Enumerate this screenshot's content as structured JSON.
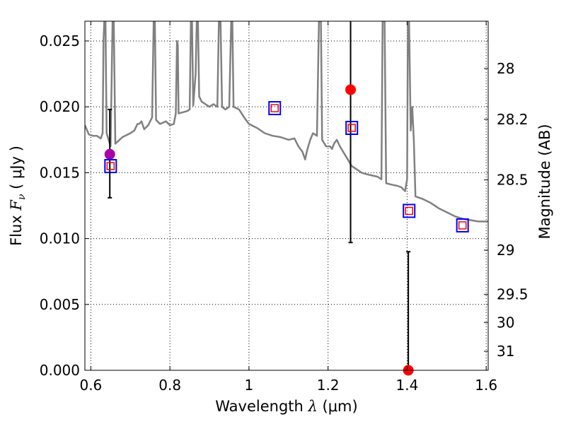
{
  "chart_data": {
    "type": "scatter",
    "xlabel": {
      "prefix": "Wavelength  ",
      "symbol": "λ",
      "unit": " (μm)"
    },
    "ylabel": {
      "prefix": "Flux  ",
      "symbol": "F",
      "subscript": "ν",
      "unit": "  ( μJy )"
    },
    "y2label": "Magnitude (AB)",
    "xlim": [
      0.585,
      1.605
    ],
    "ylim": [
      0.0,
      0.0265
    ],
    "grid": true,
    "x_ticks": [
      0.6,
      0.8,
      1.0,
      1.2,
      1.4,
      1.6
    ],
    "x_tick_labels": [
      "0.6",
      "0.8",
      "1",
      "1.2",
      "1.4",
      "1.6"
    ],
    "y_ticks": [
      0.0,
      0.005,
      0.01,
      0.015,
      0.02,
      0.025
    ],
    "y_tick_labels": [
      "0.000",
      "0.005",
      "0.010",
      "0.015",
      "0.020",
      "0.025"
    ],
    "y2_ticks": [
      28,
      28.2,
      28.5,
      29,
      29.5,
      30,
      31
    ],
    "y2_tick_labels": [
      "28",
      "28.2",
      "28.5",
      "29",
      "29.5",
      "30",
      "31"
    ],
    "colors": {
      "model": "#808080",
      "observed_point_purple": "#aa00aa",
      "observed_point_red": "#ff0000",
      "model_box_outer": "#0000ff",
      "model_box_inner": "#ff0000",
      "error_bar": "#000000",
      "grid": "#000000"
    },
    "series": [
      {
        "kind": "model_spectrum",
        "color": "#808080",
        "points": [
          [
            0.585,
            0.0186
          ],
          [
            0.595,
            0.0179
          ],
          [
            0.605,
            0.0178
          ],
          [
            0.615,
            0.0178
          ],
          [
            0.625,
            0.0176
          ],
          [
            0.63,
            0.018
          ],
          [
            0.632,
            0.025
          ],
          [
            0.634,
            0.0265
          ],
          [
            0.637,
            0.0265
          ],
          [
            0.64,
            0.018
          ],
          [
            0.65,
            0.017
          ],
          [
            0.655,
            0.0265
          ],
          [
            0.658,
            0.0265
          ],
          [
            0.662,
            0.0172
          ],
          [
            0.68,
            0.0177
          ],
          [
            0.7,
            0.018
          ],
          [
            0.71,
            0.0182
          ],
          [
            0.718,
            0.0187
          ],
          [
            0.722,
            0.0187
          ],
          [
            0.728,
            0.0189
          ],
          [
            0.735,
            0.0183
          ],
          [
            0.745,
            0.0186
          ],
          [
            0.755,
            0.0192
          ],
          [
            0.759,
            0.0265
          ],
          [
            0.762,
            0.0265
          ],
          [
            0.765,
            0.019
          ],
          [
            0.775,
            0.0187
          ],
          [
            0.79,
            0.0189
          ],
          [
            0.8,
            0.0186
          ],
          [
            0.81,
            0.0187
          ],
          [
            0.815,
            0.0195
          ],
          [
            0.818,
            0.025
          ],
          [
            0.82,
            0.0247
          ],
          [
            0.822,
            0.0195
          ],
          [
            0.835,
            0.0196
          ],
          [
            0.845,
            0.0197
          ],
          [
            0.85,
            0.0198
          ],
          [
            0.853,
            0.0265
          ],
          [
            0.856,
            0.0265
          ],
          [
            0.859,
            0.0201
          ],
          [
            0.865,
            0.0225
          ],
          [
            0.868,
            0.0265
          ],
          [
            0.871,
            0.0265
          ],
          [
            0.874,
            0.0208
          ],
          [
            0.88,
            0.0204
          ],
          [
            0.89,
            0.0202
          ],
          [
            0.9,
            0.02
          ],
          [
            0.91,
            0.0202
          ],
          [
            0.92,
            0.02
          ],
          [
            0.924,
            0.0265
          ],
          [
            0.928,
            0.0265
          ],
          [
            0.932,
            0.02
          ],
          [
            0.94,
            0.0198
          ],
          [
            0.95,
            0.02
          ],
          [
            0.955,
            0.0265
          ],
          [
            0.958,
            0.0265
          ],
          [
            0.961,
            0.02
          ],
          [
            0.975,
            0.0198
          ],
          [
            0.99,
            0.0191
          ],
          [
            1.0,
            0.0187
          ],
          [
            1.02,
            0.0184
          ],
          [
            1.04,
            0.018
          ],
          [
            1.06,
            0.0178
          ],
          [
            1.08,
            0.0177
          ],
          [
            1.1,
            0.0175
          ],
          [
            1.115,
            0.0176
          ],
          [
            1.125,
            0.017
          ],
          [
            1.135,
            0.0166
          ],
          [
            1.142,
            0.016
          ],
          [
            1.147,
            0.0167
          ],
          [
            1.155,
            0.0175
          ],
          [
            1.162,
            0.018
          ],
          [
            1.172,
            0.0178
          ],
          [
            1.177,
            0.0265
          ],
          [
            1.182,
            0.0265
          ],
          [
            1.185,
            0.0175
          ],
          [
            1.195,
            0.017
          ],
          [
            1.205,
            0.017
          ],
          [
            1.21,
            0.0168
          ],
          [
            1.215,
            0.0172
          ],
          [
            1.222,
            0.0175
          ],
          [
            1.23,
            0.017
          ],
          [
            1.24,
            0.0165
          ],
          [
            1.25,
            0.016
          ],
          [
            1.26,
            0.0155
          ],
          [
            1.275,
            0.0152
          ],
          [
            1.285,
            0.015
          ],
          [
            1.295,
            0.0149
          ],
          [
            1.31,
            0.0148
          ],
          [
            1.325,
            0.0147
          ],
          [
            1.335,
            0.0145
          ],
          [
            1.338,
            0.0265
          ],
          [
            1.343,
            0.0265
          ],
          [
            1.347,
            0.0142
          ],
          [
            1.36,
            0.0141
          ],
          [
            1.375,
            0.014
          ],
          [
            1.385,
            0.0139
          ],
          [
            1.395,
            0.0136
          ],
          [
            1.4,
            0.0145
          ],
          [
            1.402,
            0.0265
          ],
          [
            1.405,
            0.0265
          ],
          [
            1.409,
            0.0182
          ],
          [
            1.413,
            0.02
          ],
          [
            1.417,
            0.0175
          ],
          [
            1.421,
            0.0132
          ],
          [
            1.44,
            0.013
          ],
          [
            1.46,
            0.0127
          ],
          [
            1.48,
            0.0123
          ],
          [
            1.5,
            0.012
          ],
          [
            1.52,
            0.0117
          ],
          [
            1.54,
            0.0115
          ],
          [
            1.56,
            0.0114
          ],
          [
            1.58,
            0.0113
          ],
          [
            1.605,
            0.0113
          ]
        ]
      },
      {
        "kind": "model_photometry",
        "marker": "square",
        "points": [
          [
            0.65,
            0.0155
          ],
          [
            1.065,
            0.0199
          ],
          [
            1.26,
            0.0184
          ],
          [
            1.405,
            0.0121
          ],
          [
            1.54,
            0.011
          ]
        ]
      },
      {
        "kind": "observed_photometry",
        "marker": "circle",
        "points": [
          {
            "x": 0.648,
            "y": 0.0164,
            "err_lo": 0.0131,
            "err_hi": 0.0198,
            "color": "#aa00aa"
          },
          {
            "x": 1.257,
            "y": 0.0213,
            "err_lo": 0.0097,
            "err_hi": 0.0265,
            "color": "#ff0000"
          },
          {
            "x": 1.403,
            "y": 0.0,
            "err_lo": 0.0,
            "err_hi": 0.009,
            "color": "#ff0000"
          }
        ]
      }
    ]
  }
}
